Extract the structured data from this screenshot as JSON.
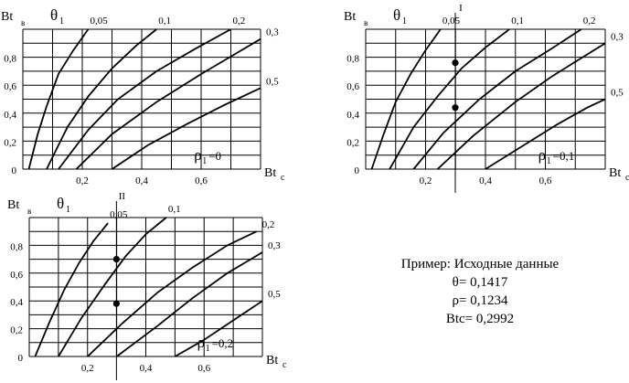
{
  "chart_data": [
    {
      "type": "line",
      "xlabel": "Bt_c",
      "ylabel": "Bt_B",
      "series_label": "θ1",
      "param_label": "ρ1=0",
      "x_ticks": [
        "0,2",
        "0,4",
        "0,6"
      ],
      "y_ticks": [
        "0",
        "0,2",
        "0,4",
        "0,6",
        "0,8"
      ],
      "xlim": [
        0,
        0.8
      ],
      "ylim": [
        0,
        1.0
      ],
      "grid": true,
      "marker_line": null,
      "points": [],
      "series": [
        {
          "name": "0,05",
          "x": [
            0.02,
            0.05,
            0.08,
            0.12,
            0.17,
            0.22
          ],
          "y": [
            0.0,
            0.25,
            0.45,
            0.68,
            0.85,
            1.0
          ]
        },
        {
          "name": "0,1",
          "x": [
            0.08,
            0.15,
            0.22,
            0.3,
            0.38,
            0.45
          ],
          "y": [
            0.0,
            0.3,
            0.52,
            0.72,
            0.88,
            1.0
          ]
        },
        {
          "name": "0,2",
          "x": [
            0.12,
            0.22,
            0.32,
            0.45,
            0.58,
            0.7
          ],
          "y": [
            0.0,
            0.28,
            0.5,
            0.7,
            0.86,
            1.0
          ]
        },
        {
          "name": "0,3",
          "x": [
            0.18,
            0.3,
            0.45,
            0.6,
            0.72,
            0.8
          ],
          "y": [
            0.0,
            0.25,
            0.48,
            0.68,
            0.83,
            0.93
          ]
        },
        {
          "name": "0,5",
          "x": [
            0.3,
            0.42,
            0.55,
            0.68,
            0.8
          ],
          "y": [
            0.0,
            0.17,
            0.32,
            0.46,
            0.58
          ]
        }
      ]
    },
    {
      "type": "line",
      "xlabel": "Bt_c",
      "ylabel": "Bt_B",
      "series_label": "θ1",
      "param_label": "ρ1=0,1",
      "x_ticks": [
        "0,2",
        "0,4",
        "0,6"
      ],
      "y_ticks": [
        "0",
        "0,2",
        "0,4",
        "0,6",
        "0,8"
      ],
      "xlim": [
        0,
        0.8
      ],
      "ylim": [
        0,
        1.0
      ],
      "grid": true,
      "marker_line": {
        "label": "I",
        "x": 0.2992
      },
      "points": [
        {
          "x": 0.2992,
          "y": 0.76
        },
        {
          "x": 0.2992,
          "y": 0.44
        }
      ],
      "series": [
        {
          "name": "0,05",
          "x": [
            0.02,
            0.06,
            0.1,
            0.15,
            0.2,
            0.25
          ],
          "y": [
            0.0,
            0.25,
            0.48,
            0.68,
            0.85,
            1.0
          ]
        },
        {
          "name": "0,1",
          "x": [
            0.08,
            0.16,
            0.24,
            0.32,
            0.4,
            0.48
          ],
          "y": [
            0.0,
            0.3,
            0.52,
            0.72,
            0.87,
            1.0
          ]
        },
        {
          "name": "0,2",
          "x": [
            0.16,
            0.26,
            0.38,
            0.5,
            0.62,
            0.72
          ],
          "y": [
            0.0,
            0.26,
            0.5,
            0.7,
            0.86,
            1.0
          ]
        },
        {
          "name": "0,3",
          "x": [
            0.24,
            0.36,
            0.5,
            0.62,
            0.74,
            0.8
          ],
          "y": [
            0.0,
            0.24,
            0.48,
            0.66,
            0.82,
            0.9
          ]
        },
        {
          "name": "0,5",
          "x": [
            0.4,
            0.52,
            0.64,
            0.74,
            0.8
          ],
          "y": [
            0.0,
            0.16,
            0.32,
            0.44,
            0.5
          ]
        }
      ]
    },
    {
      "type": "line",
      "xlabel": "Bt_c",
      "ylabel": "Bt_B",
      "series_label": "θ1",
      "param_label": "ρ1=0,2",
      "x_ticks": [
        "0,2",
        "0,4",
        "0,6"
      ],
      "y_ticks": [
        "0",
        "0,2",
        "0,4",
        "0,6",
        "0,8"
      ],
      "xlim": [
        0,
        0.8
      ],
      "ylim": [
        0,
        1.0
      ],
      "grid": true,
      "marker_line": {
        "label": "II",
        "x": 0.2992
      },
      "points": [
        {
          "x": 0.2992,
          "y": 0.7
        },
        {
          "x": 0.2992,
          "y": 0.38
        }
      ],
      "series": [
        {
          "name": "0,05",
          "x": [
            0.02,
            0.07,
            0.12,
            0.17,
            0.22,
            0.27
          ],
          "y": [
            0.0,
            0.25,
            0.48,
            0.67,
            0.83,
            0.96
          ]
        },
        {
          "name": "0,1",
          "x": [
            0.1,
            0.18,
            0.26,
            0.33,
            0.4,
            0.47
          ],
          "y": [
            0.0,
            0.28,
            0.52,
            0.72,
            0.88,
            1.0
          ]
        },
        {
          "name": "0,2",
          "x": [
            0.2,
            0.32,
            0.44,
            0.56,
            0.68,
            0.78
          ],
          "y": [
            0.0,
            0.24,
            0.46,
            0.64,
            0.8,
            0.9
          ]
        },
        {
          "name": "0,3",
          "x": [
            0.3,
            0.44,
            0.56,
            0.68,
            0.8
          ],
          "y": [
            0.0,
            0.22,
            0.42,
            0.6,
            0.75
          ]
        },
        {
          "name": "0,5",
          "x": [
            0.5,
            0.6,
            0.7,
            0.8
          ],
          "y": [
            0.0,
            0.12,
            0.26,
            0.4
          ]
        }
      ]
    }
  ],
  "example": {
    "line1": "Пример: Исходные данные",
    "line2": "θ= 0,1417",
    "line3": "ρ= 0,1234",
    "line4": "Btс= 0,2992"
  }
}
